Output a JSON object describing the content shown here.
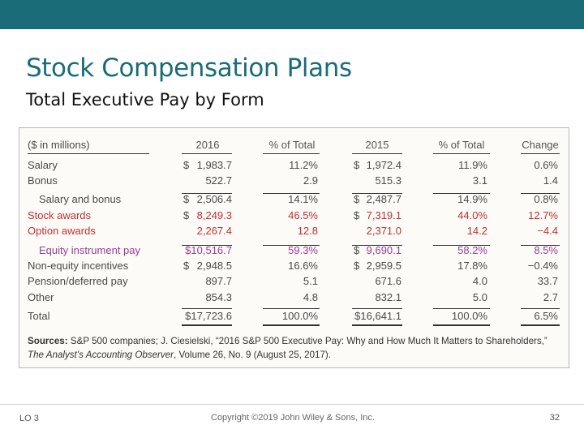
{
  "slide": {
    "title": "Stock Compensation Plans",
    "subtitle": "Total Executive Pay by Form"
  },
  "table": {
    "headers": {
      "label": "($ in millions)",
      "y2016": "2016",
      "pct2016": "% of Total",
      "y2015": "2015",
      "pct2015": "% of Total",
      "change": "Change"
    },
    "rows": [
      {
        "label": "Salary",
        "cur2016": "$",
        "v2016": "1,983.7",
        "p2016": "11.2%",
        "cur2015": "$",
        "v2015": "1,972.4",
        "p2015": "11.9%",
        "change": "0.6%"
      },
      {
        "label": "Bonus",
        "cur2016": "",
        "v2016": "522.7",
        "p2016": "2.9",
        "cur2015": "",
        "v2015": "515.3",
        "p2015": "3.1",
        "change": "1.4"
      },
      {
        "label": "Salary and bonus",
        "cur2016": "$",
        "v2016": "2,506.4",
        "p2016": "14.1%",
        "cur2015": "$",
        "v2015": "2,487.7",
        "p2015": "14.9%",
        "change": "0.8%"
      },
      {
        "label": "Stock awards",
        "cur2016": "$",
        "v2016": "8,249.3",
        "p2016": "46.5%",
        "cur2015": "$",
        "v2015": "7,319.1",
        "p2015": "44.0%",
        "change": "12.7%"
      },
      {
        "label": "Option awards",
        "cur2016": "",
        "v2016": "2,267.4",
        "p2016": "12.8",
        "cur2015": "",
        "v2015": "2,371.0",
        "p2015": "14.2",
        "change": "−4.4"
      },
      {
        "label": "Equity instrument pay",
        "cur2016": "",
        "v2016": "$10,516.7",
        "p2016": "59.3%",
        "cur2015": "$",
        "v2015": "9,690.1",
        "p2015": "58.2%",
        "change": "8.5%"
      },
      {
        "label": "Non-equity incentives",
        "cur2016": "$",
        "v2016": "2,948.5",
        "p2016": "16.6%",
        "cur2015": "$",
        "v2015": "2,959.5",
        "p2015": "17.8%",
        "change": "−0.4%"
      },
      {
        "label": "Pension/deferred pay",
        "cur2016": "",
        "v2016": "897.7",
        "p2016": "5.1",
        "cur2015": "",
        "v2015": "671.6",
        "p2015": "4.0",
        "change": "33.7"
      },
      {
        "label": "Other",
        "cur2016": "",
        "v2016": "854.3",
        "p2016": "4.8",
        "cur2015": "",
        "v2015": "832.1",
        "p2015": "5.0",
        "change": "2.7"
      },
      {
        "label": "Total",
        "cur2016": "",
        "v2016": "$17,723.6",
        "p2016": "100.0%",
        "cur2015": "",
        "v2015": "$16,641.1",
        "p2015": "100.0%",
        "change": "6.5%"
      }
    ],
    "sources_label": "Sources:",
    "sources_text": "S&P 500 companies; J. Ciesielski, “2016 S&P 500 Executive Pay: Why and How Much It Matters to Shareholders,”",
    "sources_pub": "The Analyst’s Accounting Observer",
    "sources_tail": ", Volume 26, No. 9 (August 25, 2017)."
  },
  "footer": {
    "lo": "LO 3",
    "copyright": "Copyright ©2019 John Wiley & Sons, Inc.",
    "page": "32"
  },
  "colors": {
    "accent": "#1a6c79",
    "stock_red": "#c0312f",
    "equity_purple": "#9b3d97"
  }
}
